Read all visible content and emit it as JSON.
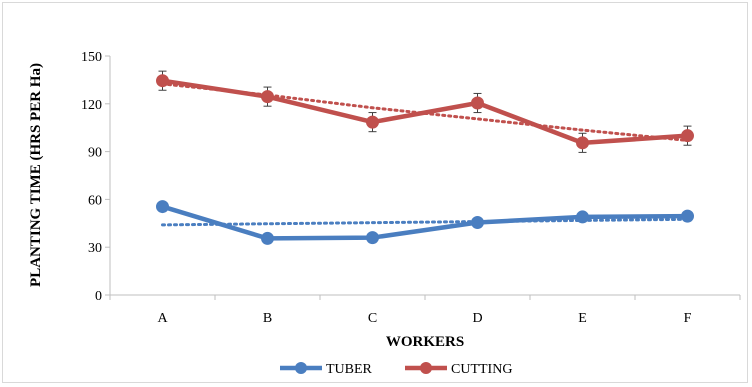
{
  "chart_data": {
    "type": "line",
    "categories": [
      "A",
      "B",
      "C",
      "D",
      "E",
      "F"
    ],
    "xlabel": "WORKERS",
    "ylabel": "PLANTING TIME (HRS PER Ha)",
    "ylim": [
      0,
      150
    ],
    "yticks": [
      0,
      30,
      60,
      90,
      120,
      150
    ],
    "grid": false,
    "legend_position": "bottom",
    "trendlines": true,
    "series": [
      {
        "name": "TUBER",
        "color": "#4a7ec0",
        "values": [
          55.5,
          35.5,
          36,
          45.5,
          49,
          49.5
        ],
        "error": [
          1.5,
          1.5,
          1.5,
          1.5,
          1.5,
          1.5
        ],
        "trend": [
          44,
          44.7,
          45.4,
          46.1,
          46.8,
          47.5
        ]
      },
      {
        "name": "CUTTING",
        "color": "#c0504d",
        "values": [
          134.5,
          124.5,
          108.5,
          120.5,
          95.5,
          100
        ],
        "error": [
          6,
          6,
          6,
          6,
          6,
          6
        ],
        "trend": [
          132.5,
          125.5,
          117.5,
          110.5,
          103.5,
          97
        ]
      }
    ]
  }
}
